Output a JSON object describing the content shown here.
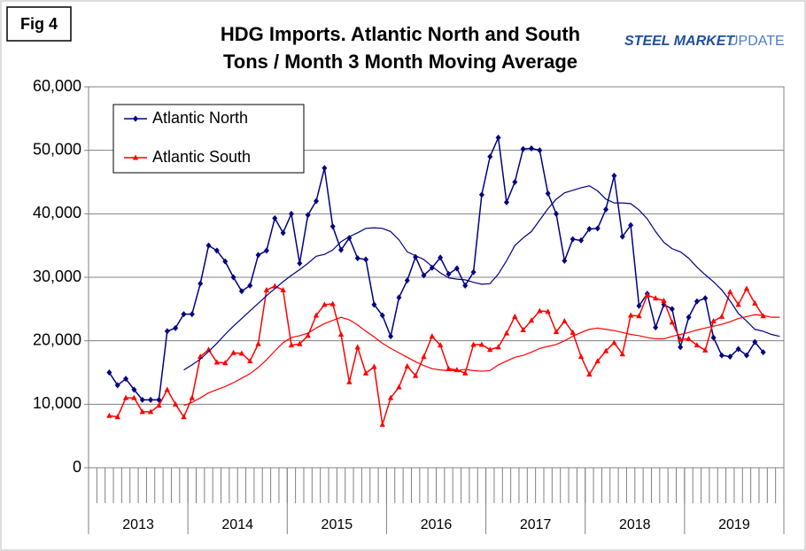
{
  "chart_data": {
    "type": "line",
    "figure_label": "Fig 4",
    "title": "HDG Imports. Atlantic North and South",
    "subtitle": "Tons / Month 3 Month Moving Average",
    "brand": {
      "bold": "STEEL MARKET",
      "light": "UPDATE"
    },
    "categories": [
      null,
      null,
      null,
      null,
      null,
      null,
      null,
      null,
      null,
      null,
      null,
      null,
      null,
      null,
      null,
      null,
      null,
      null,
      null,
      null,
      null,
      null,
      null,
      null,
      null,
      null,
      null,
      null,
      null,
      null,
      null,
      null,
      null,
      null,
      null,
      null,
      null,
      null,
      null,
      null,
      null,
      null,
      null,
      null,
      null,
      null,
      null,
      null,
      null,
      null,
      null,
      null,
      null,
      null,
      null,
      null,
      null,
      null,
      null,
      null,
      null,
      null,
      null,
      null,
      null,
      null,
      null,
      null,
      null,
      null,
      null,
      null,
      null,
      null,
      null,
      null,
      null,
      null,
      null,
      null,
      null,
      null,
      null,
      null
    ],
    "years": [
      "2013",
      "2014",
      "2015",
      "2016",
      "2017",
      "2018",
      "2019"
    ],
    "months_per_year": 12,
    "ylim": [
      0,
      60000
    ],
    "yticks": [
      0,
      {
        "value": 10000,
        "label": "10,000"
      },
      {
        "value": 20000,
        "label": "20,000"
      },
      {
        "value": 30000,
        "label": "30,000"
      },
      {
        "value": 40000,
        "label": "40,000"
      },
      {
        "value": 50000,
        "label": "50,000"
      },
      {
        "value": 60000,
        "label": "60,000"
      }
    ],
    "grid": true,
    "legend": "top-left",
    "series": [
      {
        "name": "Atlantic North",
        "color": "#000080",
        "marker": "diamond",
        "width": 1.5,
        "values": [
          null,
          null,
          15000,
          13000,
          14000,
          12300,
          10700,
          10700,
          10700,
          21500,
          22000,
          24200,
          24200,
          29000,
          35000,
          34200,
          32500,
          30000,
          27800,
          28700,
          33500,
          34200,
          39300,
          37000,
          40000,
          32200,
          39800,
          42000,
          47200,
          38000,
          34300,
          36200,
          33000,
          32800,
          25700,
          24000,
          20700,
          26800,
          29500,
          33200,
          30300,
          31500,
          33100,
          30500,
          31400,
          28700,
          30800,
          43000,
          49000,
          52000,
          41800,
          45000,
          50200,
          50300,
          50000,
          43200,
          40000,
          32600,
          36000,
          35800,
          37600,
          37700,
          40700,
          46000,
          36400,
          38200,
          25500,
          27400,
          22100,
          25700,
          25000,
          19000,
          23700,
          26200,
          26700,
          20500,
          17700,
          17500,
          18700,
          17700,
          19800,
          18200,
          null,
          null
        ]
      },
      {
        "name": "Atlantic South",
        "color": "#ff0000",
        "marker": "triangle",
        "width": 1.5,
        "values": [
          null,
          null,
          8200,
          8000,
          11000,
          11000,
          8800,
          8800,
          9800,
          12300,
          10000,
          8000,
          11000,
          17500,
          18600,
          16600,
          16500,
          18100,
          18000,
          16800,
          19500,
          28000,
          28600,
          28000,
          19300,
          19500,
          20800,
          24000,
          25700,
          25800,
          21000,
          13500,
          19000,
          14900,
          15900,
          6800,
          11000,
          12700,
          16000,
          14500,
          17500,
          20700,
          19300,
          15600,
          15400,
          14900,
          19400,
          19400,
          18600,
          19000,
          21200,
          23800,
          21700,
          23200,
          24700,
          24600,
          21400,
          23100,
          21300,
          17500,
          14700,
          16800,
          18400,
          19700,
          17900,
          24000,
          23900,
          27200,
          26700,
          26300,
          22900,
          20200,
          20300,
          19300,
          18500,
          23100,
          23800,
          27700,
          25700,
          28200,
          25900,
          23900,
          null,
          null
        ]
      },
      {
        "color": "#000080",
        "marker": "none",
        "width": 1.2,
        "values": [
          null,
          null,
          null,
          null,
          null,
          null,
          null,
          null,
          null,
          null,
          null,
          15400,
          16200,
          17100,
          18300,
          19600,
          21000,
          22300,
          23500,
          24700,
          25900,
          27100,
          28200,
          29300,
          30300,
          31200,
          32200,
          33300,
          33600,
          34300,
          35600,
          36400,
          37000,
          37700,
          37800,
          37700,
          37200,
          35900,
          34000,
          33400,
          32800,
          31700,
          30700,
          29900,
          29700,
          29600,
          29200,
          28900,
          29000,
          30500,
          32600,
          35000,
          36200,
          37200,
          39000,
          40800,
          42300,
          43300,
          43700,
          44100,
          44400,
          43600,
          42300,
          41700,
          41700,
          41600,
          40600,
          39200,
          37200,
          35500,
          34500,
          34000,
          33000,
          31600,
          30400,
          29300,
          28000,
          26300,
          24300,
          23100,
          21800,
          21500,
          21000,
          20700
        ]
      },
      {
        "color": "#ff0000",
        "marker": "none",
        "width": 1.2,
        "values": [
          null,
          null,
          null,
          null,
          null,
          null,
          null,
          null,
          null,
          null,
          null,
          9800,
          10300,
          11000,
          11800,
          12300,
          12800,
          13400,
          14100,
          14800,
          15800,
          17000,
          18400,
          19700,
          20500,
          20800,
          21200,
          22000,
          22700,
          23200,
          23700,
          23300,
          22500,
          21500,
          20600,
          19600,
          18800,
          18100,
          17400,
          16700,
          16100,
          15600,
          15400,
          15300,
          15300,
          15500,
          15300,
          15200,
          15300,
          16200,
          16800,
          17400,
          17700,
          18200,
          18800,
          19100,
          19400,
          20000,
          20700,
          21300,
          21800,
          22000,
          21800,
          21600,
          21300,
          21000,
          20800,
          20500,
          20300,
          20300,
          20700,
          21000,
          21300,
          21700,
          22000,
          22300,
          22600,
          23000,
          23500,
          23800,
          24100,
          24000,
          23700,
          23700
        ]
      }
    ]
  }
}
